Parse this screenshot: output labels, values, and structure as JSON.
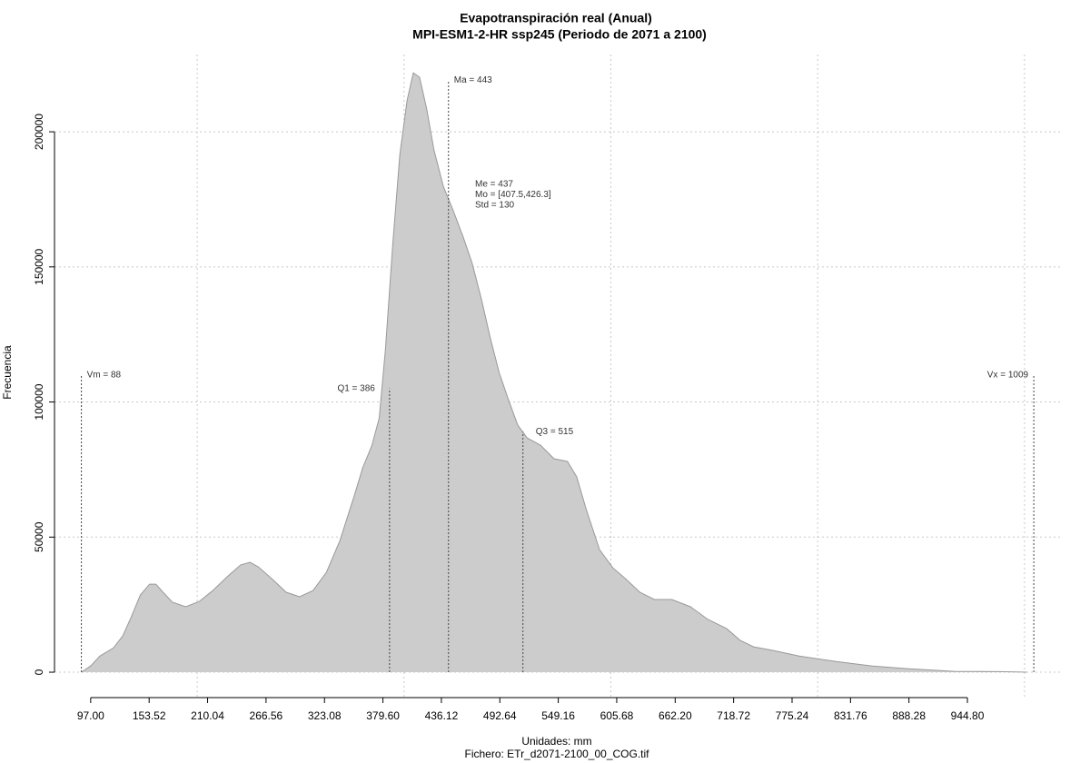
{
  "chart_data": {
    "type": "area",
    "title": "Evapotranspiración real (Anual)",
    "subtitle": "MPI-ESM1-2-HR ssp245 (Periodo de 2071 a 2100)",
    "xlabel": "Unidades: mm",
    "ylabel": "Frecuencia",
    "footnote": "Fichero: ETr_d2071-2100_00_COG.tif",
    "color": "#cccccc",
    "edge_color": "#999999",
    "grid": true,
    "xlim": [
      62,
      1037
    ],
    "ylim": [
      -9400,
      228600
    ],
    "xticks": [
      {
        "value": 97,
        "label": "97.00"
      },
      153.52,
      210.04,
      266.56,
      323.08,
      {
        "value": 379.6,
        "label": "379.60"
      },
      436.12,
      492.64,
      549.16,
      605.68,
      {
        "value": 662.2,
        "label": "662.20"
      },
      718.72,
      775.24,
      831.76,
      888.28,
      {
        "value": 944.8,
        "label": "944.80"
      }
    ],
    "xgrid": [
      200,
      400,
      600,
      800,
      1000
    ],
    "yticks": [
      0,
      50000,
      100000,
      150000,
      200000
    ],
    "x": [
      88,
      97,
      106,
      119,
      128,
      136,
      145,
      154,
      160,
      167,
      176,
      189,
      202,
      215,
      229,
      242,
      251,
      259,
      273,
      286,
      299,
      312,
      325,
      338,
      352,
      360,
      369,
      376,
      382,
      389,
      396,
      403,
      409,
      415,
      422,
      429,
      438,
      447,
      457,
      466,
      475,
      483,
      492,
      501,
      510,
      519,
      532,
      545,
      558,
      567,
      576,
      589,
      602,
      615,
      628,
      642,
      659,
      677,
      694,
      712,
      725,
      738,
      756,
      782,
      817,
      853,
      888,
      932,
      976,
      1002
    ],
    "values": [
      0,
      2300,
      6000,
      9000,
      13400,
      20200,
      28600,
      32600,
      32600,
      29600,
      25900,
      24200,
      26200,
      30200,
      35300,
      39700,
      40700,
      39000,
      34300,
      29600,
      27900,
      30200,
      37000,
      48700,
      65500,
      75600,
      84000,
      94100,
      119300,
      158000,
      191600,
      211700,
      221800,
      220200,
      208400,
      193200,
      179800,
      171400,
      161300,
      151200,
      137800,
      124400,
      110900,
      100800,
      91400,
      86700,
      84000,
      79000,
      78000,
      72300,
      60500,
      45400,
      38600,
      34300,
      29600,
      26900,
      26900,
      24200,
      19500,
      16100,
      11800,
      9400,
      8100,
      6000,
      4000,
      2300,
      1300,
      300,
      200,
      0
    ],
    "markers": [
      {
        "label": "Vm = 88",
        "x": 88,
        "y": 110000
      },
      {
        "label": "Q1 = 386",
        "x": 386,
        "y": 105000
      },
      {
        "label": "Ma = 443",
        "x": 443,
        "y": 219000
      },
      {
        "label": "Q3 = 515",
        "x": 515,
        "y": 89000
      },
      {
        "label": "Vx = 1009",
        "x": 1009,
        "y": 110000
      }
    ],
    "stats": [
      "Me = 437",
      "Mo = [407.5,426.3]",
      "Std = 130"
    ]
  }
}
